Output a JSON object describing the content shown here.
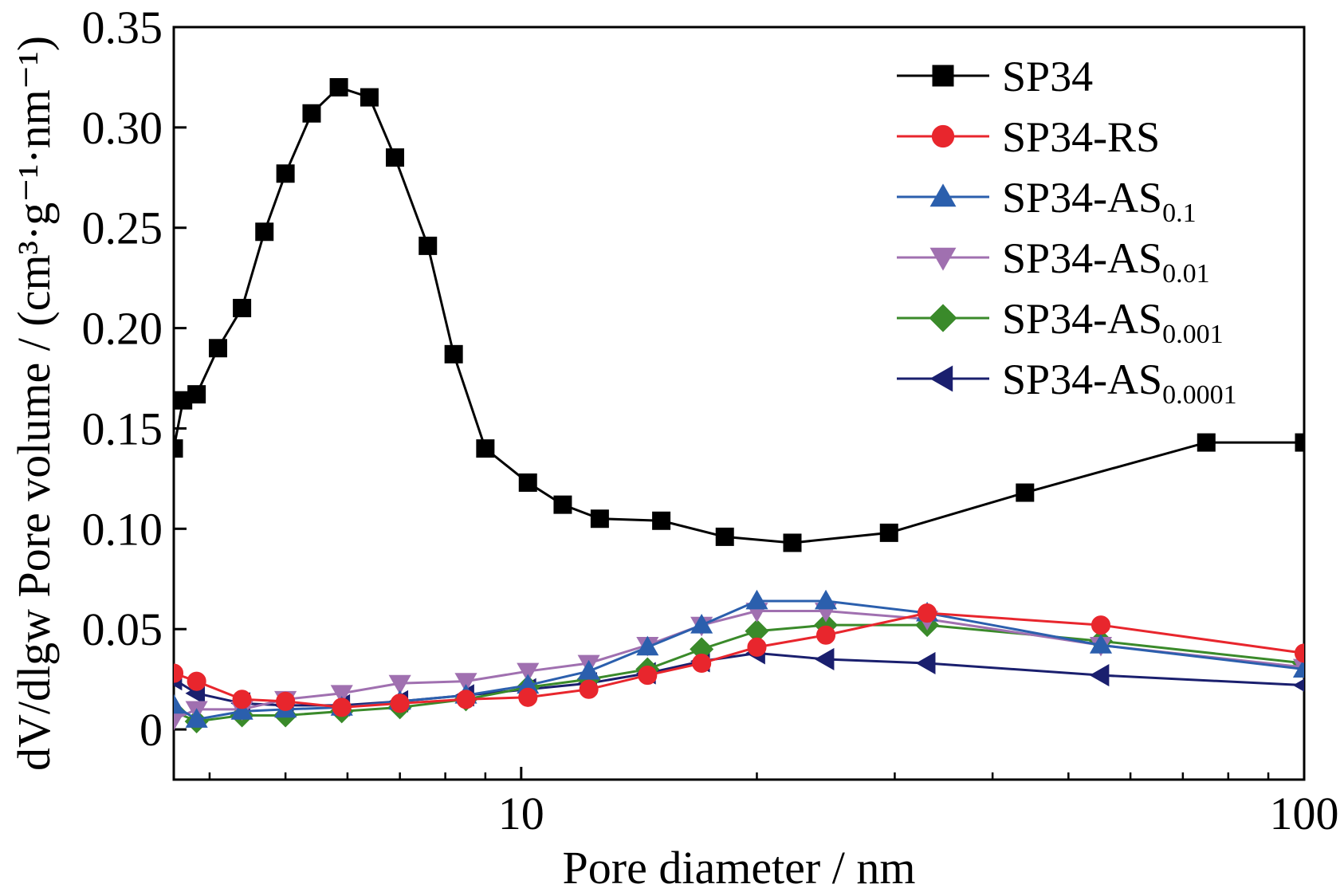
{
  "chart_data": {
    "type": "line",
    "xlabel": "Pore diameter / nm",
    "ylabel": "dV/dlgw Pore volume / (cm³·g⁻¹·nm⁻¹)",
    "x_scale": "log",
    "xlim": [
      3.6,
      100
    ],
    "ylim": [
      -0.025,
      0.35
    ],
    "x_ticks": [
      10,
      100
    ],
    "x_tick_labels": [
      "10",
      "100"
    ],
    "y_ticks": [
      0,
      0.05,
      0.1,
      0.15,
      0.2,
      0.25,
      0.3,
      0.35
    ],
    "y_tick_labels": [
      "0",
      "0.05",
      "0.10",
      "0.15",
      "0.20",
      "0.25",
      "0.30",
      "0.35"
    ],
    "legend_position": "top-right",
    "series": [
      {
        "name": "SP34",
        "color": "#000000",
        "marker": "square",
        "x": [
          3.6,
          3.7,
          3.85,
          4.1,
          4.4,
          4.7,
          5.0,
          5.4,
          5.85,
          6.4,
          6.9,
          7.6,
          8.2,
          9.0,
          10.2,
          11.3,
          12.6,
          15.1,
          18.2,
          22.2,
          29.5,
          44.0,
          75.0,
          100.0
        ],
        "y": [
          0.14,
          0.164,
          0.167,
          0.19,
          0.21,
          0.248,
          0.277,
          0.307,
          0.32,
          0.315,
          0.285,
          0.241,
          0.187,
          0.14,
          0.123,
          0.112,
          0.105,
          0.104,
          0.096,
          0.093,
          0.098,
          0.118,
          0.143,
          0.143
        ]
      },
      {
        "name": "SP34-RS",
        "color": "#e8262d",
        "marker": "circle",
        "x": [
          3.6,
          3.85,
          4.4,
          5.0,
          5.9,
          7.0,
          8.5,
          10.2,
          12.2,
          14.5,
          17.0,
          20.0,
          24.5,
          33.0,
          55.0,
          100.0
        ],
        "y": [
          0.028,
          0.024,
          0.015,
          0.014,
          0.011,
          0.013,
          0.015,
          0.016,
          0.02,
          0.027,
          0.033,
          0.041,
          0.047,
          0.058,
          0.052,
          0.038
        ]
      },
      {
        "name": "SP34-AS0.1",
        "color": "#2b5fad",
        "marker": "triangle-up",
        "x": [
          3.6,
          3.85,
          4.4,
          5.0,
          5.9,
          7.0,
          8.5,
          10.2,
          12.2,
          14.5,
          17.0,
          20.0,
          24.5,
          33.0,
          55.0,
          100.0
        ],
        "y": [
          0.012,
          0.005,
          0.009,
          0.01,
          0.011,
          0.014,
          0.017,
          0.022,
          0.029,
          0.041,
          0.052,
          0.064,
          0.064,
          0.058,
          0.042,
          0.03
        ]
      },
      {
        "name": "SP34-AS0.01",
        "color": "#a070b0",
        "marker": "triangle-down",
        "x": [
          3.6,
          3.85,
          4.4,
          5.0,
          5.9,
          7.0,
          8.5,
          10.2,
          12.2,
          14.5,
          17.0,
          20.0,
          24.5,
          33.0,
          55.0,
          100.0
        ],
        "y": [
          0.005,
          0.01,
          0.01,
          0.015,
          0.018,
          0.023,
          0.024,
          0.029,
          0.033,
          0.042,
          0.052,
          0.059,
          0.059,
          0.055,
          0.042,
          0.031
        ]
      },
      {
        "name": "SP34-AS0.001",
        "color": "#3a8a2a",
        "marker": "diamond",
        "x": [
          3.6,
          3.85,
          4.4,
          5.0,
          5.9,
          7.0,
          8.5,
          10.2,
          12.2,
          14.5,
          17.0,
          20.0,
          24.5,
          33.0,
          55.0,
          100.0
        ],
        "y": [
          0.009,
          0.004,
          0.007,
          0.007,
          0.009,
          0.011,
          0.015,
          0.021,
          0.025,
          0.03,
          0.04,
          0.049,
          0.052,
          0.052,
          0.044,
          0.033
        ]
      },
      {
        "name": "SP34-AS0.0001",
        "color": "#1a1f6e",
        "marker": "triangle-left",
        "x": [
          3.6,
          3.85,
          4.4,
          5.0,
          5.9,
          7.0,
          8.5,
          10.2,
          12.2,
          14.5,
          17.0,
          20.0,
          24.5,
          33.0,
          55.0,
          100.0
        ],
        "y": [
          0.025,
          0.018,
          0.013,
          0.012,
          0.012,
          0.014,
          0.017,
          0.02,
          0.023,
          0.028,
          0.034,
          0.038,
          0.035,
          0.033,
          0.027,
          0.022
        ]
      }
    ]
  }
}
